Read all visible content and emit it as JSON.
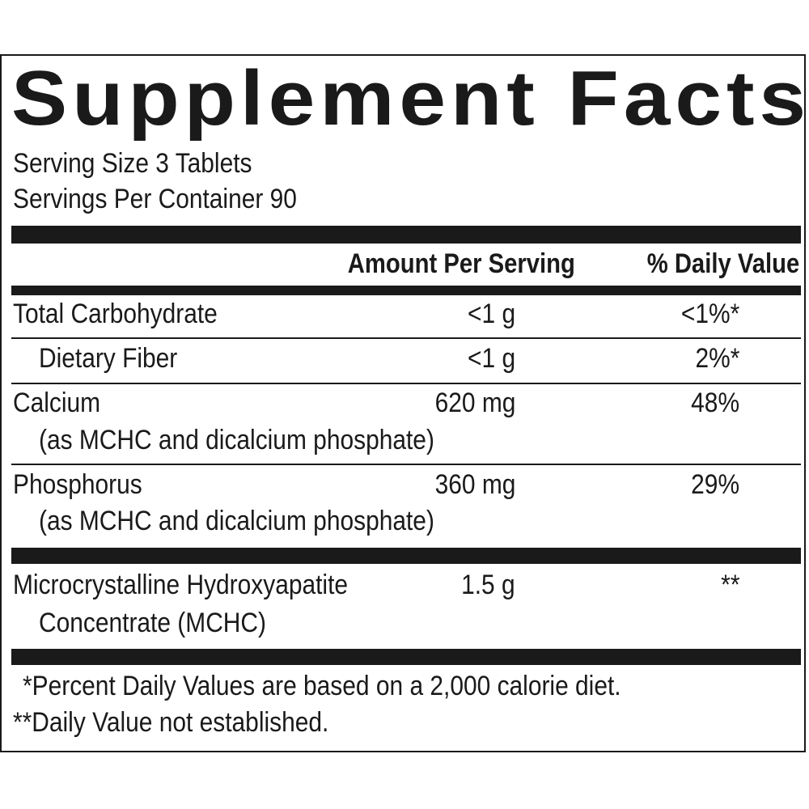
{
  "title": "Supplement Facts",
  "serving": {
    "size": "Serving Size 3 Tablets",
    "per_container": "Servings Per Container 90"
  },
  "header": {
    "amount": "Amount Per Serving",
    "daily_value": "% Daily Value"
  },
  "rows": [
    {
      "name": "Total Carbohydrate",
      "amount": "<1 g",
      "dv": "<1%*"
    },
    {
      "name": "Dietary Fiber",
      "amount": "<1 g",
      "dv": "2%*"
    },
    {
      "name": "Calcium",
      "sub": "(as MCHC and dicalcium phosphate)",
      "amount": "620 mg",
      "dv": "48%"
    },
    {
      "name": "Phosphorus",
      "sub": "(as MCHC and dicalcium phosphate)",
      "amount": "360 mg",
      "dv": "29%"
    },
    {
      "name": "Microcrystalline Hydroxyapatite",
      "sub": "Concentrate (MCHC)",
      "amount": "1.5 g",
      "dv": "**"
    }
  ],
  "footnotes": {
    "percent": "*Percent Daily Values are based on a 2,000 calorie diet.",
    "not_established": "**Daily Value not established."
  },
  "colors": {
    "ink": "#1a1a1a",
    "background": "#ffffff"
  }
}
